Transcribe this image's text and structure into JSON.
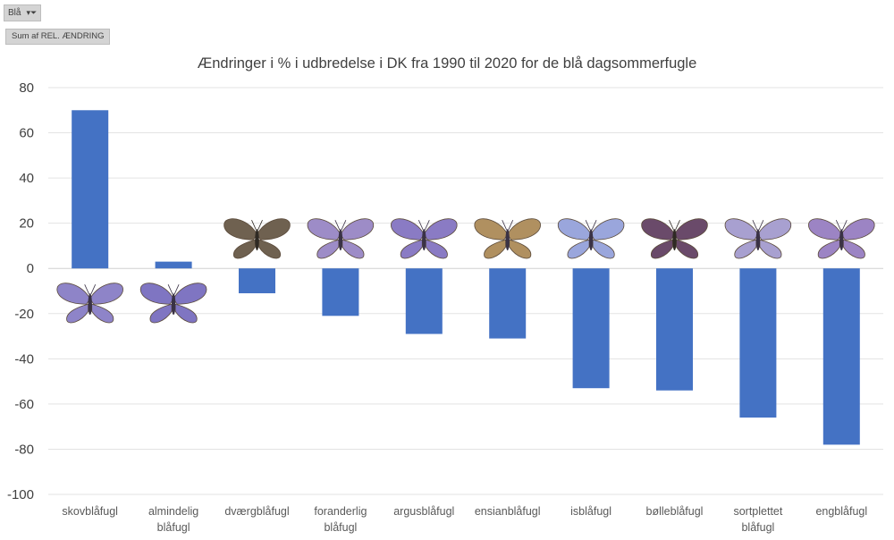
{
  "pivot": {
    "filter_label": "Blå",
    "field_label": "Sum af REL. ÆNDRING"
  },
  "chart_data": {
    "type": "bar",
    "title": "Ændringer i % i udbredelse i DK fra 1990 til 2020 for de blå dagsommerfugle",
    "xlabel": "",
    "ylabel": "",
    "ylim": [
      -100,
      80
    ],
    "yticks": [
      80,
      60,
      40,
      20,
      0,
      -20,
      -40,
      -60,
      -80,
      -100
    ],
    "grid": true,
    "legend": "none",
    "bar_color": "#4472c4",
    "categories": [
      [
        "skovblåfugl"
      ],
      [
        "almindelig",
        "blåfugl"
      ],
      [
        "dværgblåfugl"
      ],
      [
        "foranderlig",
        "blåfugl"
      ],
      [
        "argusblåfugl"
      ],
      [
        "ensianblåfugl"
      ],
      [
        "isblåfugl"
      ],
      [
        "bølleblåfugl"
      ],
      [
        "sortplettet",
        "blåfugl"
      ],
      [
        "engblåfugl"
      ]
    ],
    "values": [
      70,
      3,
      -11,
      -21,
      -29,
      -31,
      -53,
      -54,
      -66,
      -78
    ],
    "butterfly_icons": [
      {
        "name": "skovblåfugl-butterfly-icon",
        "wing": "#8e84c8",
        "body": "#3a3245"
      },
      {
        "name": "almindelig-blåfugl-butterfly-icon",
        "wing": "#7f75c2",
        "body": "#3a3245"
      },
      {
        "name": "dværgblåfugl-butterfly-icon",
        "wing": "#6f6150",
        "body": "#2f2a24"
      },
      {
        "name": "foranderlig-blåfugl-butterfly-icon",
        "wing": "#9d8cc7",
        "body": "#3a3245"
      },
      {
        "name": "argusblåfugl-butterfly-icon",
        "wing": "#8a7bc4",
        "body": "#3a3245"
      },
      {
        "name": "ensianblåfugl-butterfly-icon",
        "wing": "#b09060",
        "body": "#3a3245"
      },
      {
        "name": "isblåfugl-butterfly-icon",
        "wing": "#9aa6dc",
        "body": "#3a3245"
      },
      {
        "name": "bølleblåfugl-butterfly-icon",
        "wing": "#6a4a6a",
        "body": "#2f2a24"
      },
      {
        "name": "sortplettet-blåfugl-butterfly-icon",
        "wing": "#a8a0d0",
        "body": "#3a3245"
      },
      {
        "name": "engblåfugl-butterfly-icon",
        "wing": "#9c84c4",
        "body": "#3a3245"
      }
    ]
  }
}
